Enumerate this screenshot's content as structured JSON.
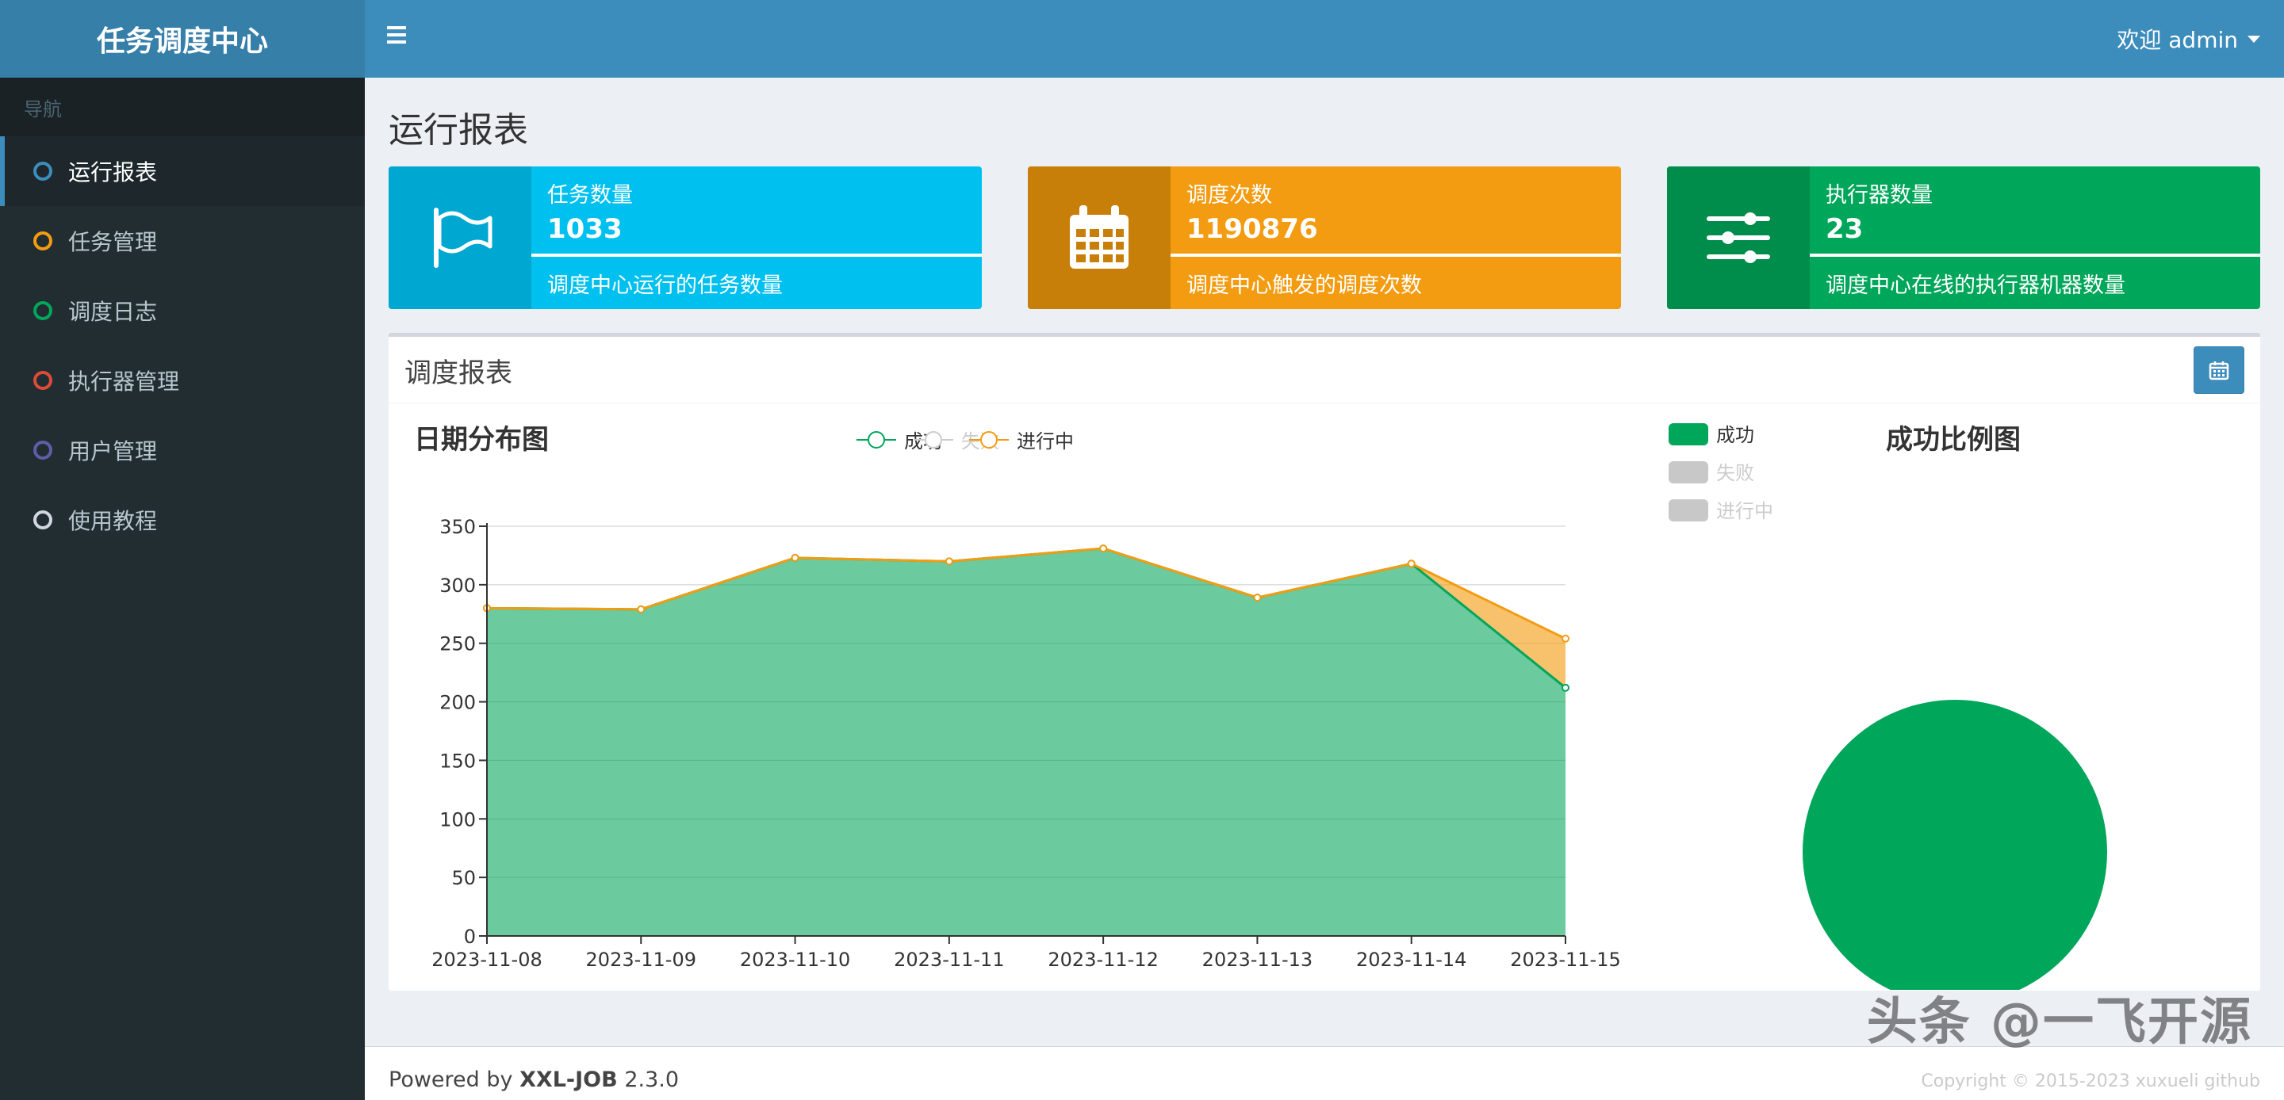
{
  "sidebar": {
    "brand": "任务调度中心",
    "nav_header": "导航",
    "items": [
      {
        "label": "运行报表",
        "color": "#3c8dbc"
      },
      {
        "label": "任务管理",
        "color": "#f39c12"
      },
      {
        "label": "调度日志",
        "color": "#00a65a"
      },
      {
        "label": "执行器管理",
        "color": "#dd4b39"
      },
      {
        "label": "用户管理",
        "color": "#605ca8"
      },
      {
        "label": "使用教程",
        "color": "#d2d6de"
      }
    ]
  },
  "header": {
    "welcome": "欢迎 admin"
  },
  "page": {
    "title": "运行报表"
  },
  "info_boxes": [
    {
      "title": "任务数量",
      "number": "1033",
      "desc": "调度中心运行的任务数量",
      "icon": "flag-icon"
    },
    {
      "title": "调度次数",
      "number": "1190876",
      "desc": "调度中心触发的调度次数",
      "icon": "calendar-icon"
    },
    {
      "title": "执行器数量",
      "number": "23",
      "desc": "调度中心在线的执行器机器数量",
      "icon": "sliders-icon"
    }
  ],
  "report": {
    "title": "调度报表"
  },
  "chart_data": [
    {
      "type": "area",
      "title": "日期分布图",
      "categories": [
        "2023-11-08",
        "2023-11-09",
        "2023-11-10",
        "2023-11-11",
        "2023-11-12",
        "2023-11-13",
        "2023-11-14",
        "2023-11-15"
      ],
      "series": [
        {
          "name": "成功",
          "values": [
            280,
            279,
            323,
            320,
            331,
            289,
            318,
            212
          ],
          "color": "#00a65a"
        },
        {
          "name": "失败",
          "values": [
            0,
            0,
            0,
            0,
            0,
            0,
            0,
            0
          ],
          "color": "#c23632"
        },
        {
          "name": "进行中",
          "values": [
            0,
            0,
            0,
            0,
            0,
            0,
            0,
            42
          ],
          "color": "#f39c12"
        }
      ],
      "legend": [
        "成功",
        "失败",
        "进行中"
      ],
      "stacked": true,
      "ylim": [
        0,
        350
      ],
      "yticks": [
        0,
        50,
        100,
        150,
        200,
        250,
        300,
        350
      ],
      "grid": true
    },
    {
      "type": "pie",
      "title": "成功比例图",
      "labels": [
        "成功",
        "失败",
        "进行中"
      ],
      "values": [
        1,
        0,
        0
      ],
      "colors": [
        "#00a65a",
        "#c8c8c8",
        "#c8c8c8"
      ],
      "slice_label": "成功"
    }
  ],
  "footer": {
    "prefix": "Powered by",
    "brand": "XXL-JOB",
    "version": "2.3.0"
  },
  "watermark": "头条 @一飞开源",
  "copyright": "Copyright © 2015-2023 xuxueli github"
}
